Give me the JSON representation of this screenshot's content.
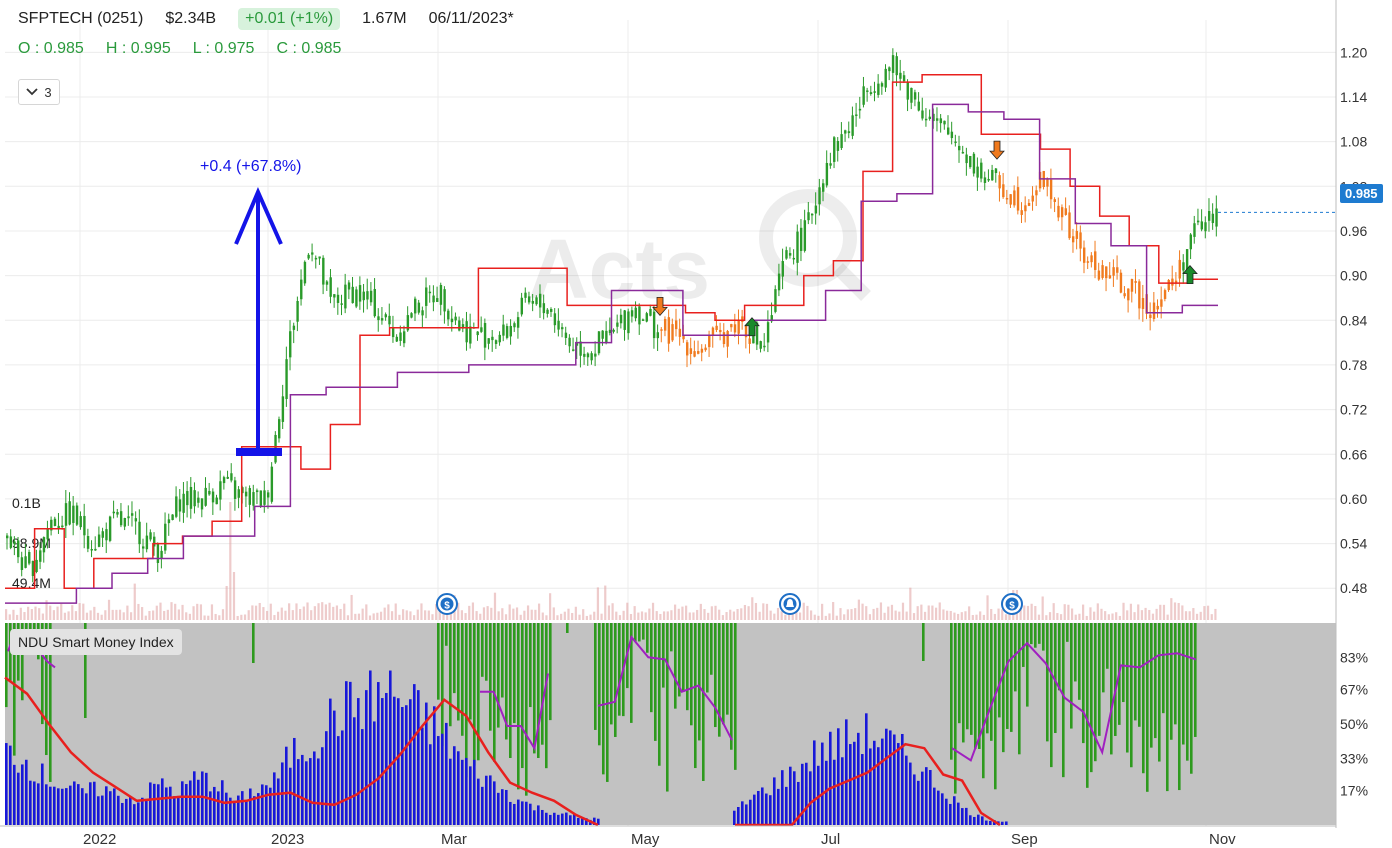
{
  "header": {
    "symbol": "SFPTECH (0251)",
    "market_cap": "$2.34B",
    "change": "+0.01 (+1%)",
    "volume": "1.67M",
    "date": "06/11/2023*"
  },
  "ohlc": {
    "open": "O : 0.985",
    "high": "H : 0.995",
    "low": "L : 0.975",
    "close": "C : 0.985"
  },
  "controls": {
    "dropdown_value": "3"
  },
  "indicator": {
    "label": "NDU Smart Money Index"
  },
  "colors": {
    "up": "#2a9a2a",
    "down": "#f07a1e",
    "upper_band": "#e8201e",
    "lower_band": "#8a2a9a",
    "smi_bar": "#2e9a1e",
    "volume_blue": "#1818d8",
    "smi_line": "#a020c0",
    "accent": "#1e7bd0",
    "annotation": "#1414e8"
  },
  "chart_data": [
    {
      "type": "candlestick",
      "title": "SFPTECH (0251)",
      "y_ticks": [
        "1.20",
        "1.14",
        "1.08",
        "1.02",
        "0.96",
        "0.90",
        "0.84",
        "0.78",
        "0.72",
        "0.66",
        "0.60",
        "0.54",
        "0.48"
      ],
      "ylim": [
        0.44,
        1.23
      ],
      "x_ticks": [
        "2022",
        "2023",
        "Mar",
        "May",
        "Jul",
        "Sep",
        "Nov"
      ],
      "last_price": "0.985",
      "close_series": [
        0.55,
        0.5,
        0.57,
        0.58,
        0.54,
        0.57,
        0.56,
        0.53,
        0.6,
        0.6,
        0.62,
        0.6,
        0.6,
        0.8,
        0.95,
        0.86,
        0.88,
        0.86,
        0.82,
        0.86,
        0.88,
        0.83,
        0.82,
        0.82,
        0.86,
        0.86,
        0.81,
        0.8,
        0.82,
        0.86,
        0.83,
        0.82,
        0.8,
        0.82,
        0.84,
        0.8,
        0.92,
        0.96,
        1.06,
        1.1,
        1.16,
        1.18,
        1.14,
        1.1,
        1.08,
        1.04,
        1.02,
        1.0,
        1.03,
        0.97,
        0.92,
        0.9,
        0.88,
        0.86,
        0.89,
        0.96,
        0.985
      ],
      "upper_band": [
        0.48,
        0.56,
        0.48,
        0.52,
        0.52,
        0.54,
        0.55,
        0.57,
        0.67,
        0.67,
        0.64,
        0.7,
        0.82,
        0.83,
        0.83,
        0.83,
        0.91,
        0.91,
        0.91,
        0.86,
        0.86,
        0.86,
        0.86,
        0.85,
        0.84,
        0.86,
        0.86,
        0.9,
        0.92,
        1.04,
        1.16,
        1.17,
        1.17,
        1.09,
        1.09,
        1.07,
        1.02,
        0.98,
        0.94,
        0.89,
        0.895
      ],
      "lower_band": [
        0.46,
        0.46,
        0.48,
        0.5,
        0.52,
        0.55,
        0.55,
        0.59,
        0.74,
        0.75,
        0.75,
        0.77,
        0.77,
        0.78,
        0.78,
        0.78,
        0.81,
        0.88,
        0.88,
        0.82,
        0.82,
        0.84,
        0.84,
        0.88,
        1.0,
        1.01,
        1.13,
        1.12,
        1.11,
        1.03,
        0.97,
        0.94,
        0.85,
        0.86
      ],
      "signals": [
        {
          "type": "sell",
          "price": 0.86
        },
        {
          "type": "buy",
          "price": 0.83
        },
        {
          "type": "sell",
          "price": 1.07
        },
        {
          "type": "buy",
          "price": 0.9
        }
      ],
      "annotation": "+0.4 (+67.8%)"
    },
    {
      "type": "bar",
      "title": "Volume",
      "labels": [
        "0.1B",
        "98.9M",
        "49.4M"
      ]
    },
    {
      "type": "bar",
      "title": "NDU Smart Money Index",
      "y_ticks": [
        "83%",
        "67%",
        "50%",
        "33%",
        "17%"
      ],
      "ylim": [
        0,
        100
      ],
      "smi_bars": [
        72,
        57,
        77,
        41,
        74,
        15,
        14,
        14,
        20,
        80,
        80,
        96,
        49,
        97,
        18,
        59,
        49,
        54,
        84,
        93,
        83,
        95,
        93,
        41,
        33,
        88,
        78,
        65,
        60,
        92,
        95,
        95,
        95,
        95,
        95,
        75,
        90,
        95,
        90,
        95,
        95,
        93,
        95,
        85,
        95,
        95
      ],
      "smi_line": [
        86,
        96,
        88,
        89,
        86,
        81,
        78,
        66,
        66,
        49,
        49,
        38,
        75,
        59,
        61,
        93,
        83,
        82,
        66,
        69,
        58,
        42,
        38,
        32,
        57,
        81,
        90,
        80,
        63,
        56,
        36,
        79,
        78,
        84,
        85,
        82
      ],
      "blue_volume": [
        38,
        33,
        25,
        20,
        17,
        19,
        15,
        13,
        22,
        17,
        25,
        22,
        12,
        18,
        22,
        38,
        42,
        55,
        62,
        65,
        70,
        62,
        55,
        45,
        32,
        25,
        18,
        12,
        8,
        6,
        4,
        3,
        7,
        15,
        22,
        28,
        38,
        42,
        48,
        45,
        38,
        28,
        18,
        8,
        3,
        2
      ],
      "red_line": [
        73,
        65,
        50,
        36,
        26,
        19,
        12,
        13,
        14,
        14,
        11,
        12,
        15,
        16,
        11,
        10,
        15,
        23,
        35,
        49,
        62,
        54,
        36,
        21,
        16,
        12,
        5,
        0,
        0,
        0,
        0,
        0,
        11,
        18,
        22,
        26,
        33,
        40,
        38,
        25,
        22,
        6,
        0
      ]
    }
  ]
}
